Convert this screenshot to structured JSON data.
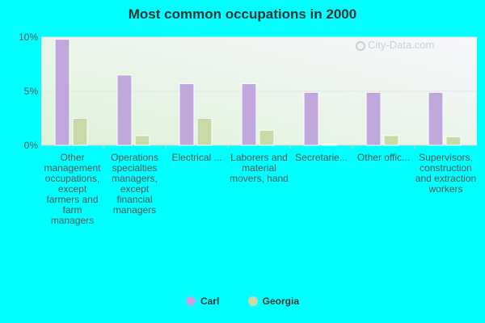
{
  "title": "Most common occupations in 2000",
  "watermark": "City-Data.com",
  "colors": {
    "carl": "#c0a8dc",
    "georgia": "#c9d9a8",
    "background": "#00ffff",
    "plot_bg_top": "#f7f7fc",
    "plot_bg_bottom": "#ddf2d8"
  },
  "legend": [
    {
      "name": "Carl",
      "color": "#c0a8dc"
    },
    {
      "name": "Georgia",
      "color": "#c9d9a8"
    }
  ],
  "chart_data": {
    "type": "bar",
    "title": "Most common occupations in 2000",
    "categories": [
      "Other management occupations, except farmers and farm managers",
      "Operations specialties managers, except financial managers",
      "Electrical ...",
      "Laborers and material movers, hand",
      "Secretarie...",
      "Other offic...",
      "Supervisors, construction and extraction workers"
    ],
    "series": [
      {
        "name": "Carl",
        "values": [
          9.8,
          6.5,
          5.7,
          5.7,
          4.9,
          4.9,
          4.9
        ]
      },
      {
        "name": "Georgia",
        "values": [
          2.5,
          0.9,
          2.5,
          1.4,
          0.1,
          0.9,
          0.8
        ]
      }
    ],
    "yticks": [
      "0%",
      "5%",
      "10%"
    ],
    "ylim": [
      0,
      10
    ],
    "xlabel": "",
    "ylabel": "",
    "legend_position": "bottom"
  }
}
